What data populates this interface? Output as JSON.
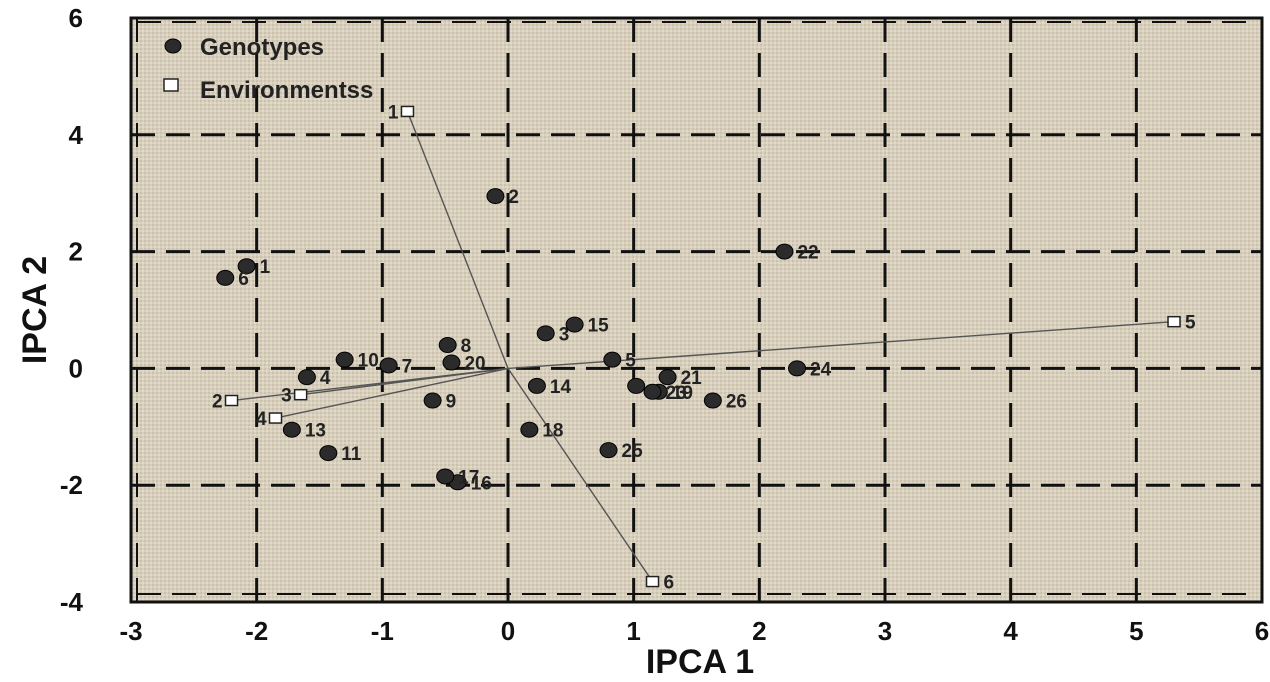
{
  "chart_data": {
    "type": "scatter",
    "title": "",
    "xlabel": "IPCA 1",
    "ylabel": "IPCA 2",
    "xlim": [
      -3,
      6
    ],
    "ylim": [
      -4,
      6
    ],
    "x_ticks": [
      -3,
      -2,
      -1,
      0,
      1,
      2,
      3,
      4,
      5,
      6
    ],
    "y_ticks": [
      -4,
      -2,
      0,
      2,
      4,
      6
    ],
    "x_tick_labels": [
      "-3",
      "-2",
      "-1",
      "0",
      "1",
      "2",
      "3",
      "4",
      "5",
      "6"
    ],
    "y_tick_labels": [
      "-4",
      "-2",
      "0",
      "2",
      "4",
      "6"
    ],
    "grid": true,
    "legend_position": "top-left",
    "colors": {
      "genotype": "#2b2b2b",
      "environment": "#ffffff",
      "background": "#d8cfbd",
      "grid": "#111111",
      "vector": "#555555"
    },
    "series": [
      {
        "name": "Genotypes",
        "marker": "filled-circle",
        "points": [
          {
            "label": "1",
            "x": -2.08,
            "y": 1.75
          },
          {
            "label": "2",
            "x": -0.1,
            "y": 2.95
          },
          {
            "label": "3",
            "x": 0.3,
            "y": 0.6
          },
          {
            "label": "4",
            "x": -1.6,
            "y": -0.15
          },
          {
            "label": "5",
            "x": 0.83,
            "y": 0.15
          },
          {
            "label": "6",
            "x": -2.25,
            "y": 1.55
          },
          {
            "label": "7",
            "x": -0.95,
            "y": 0.05
          },
          {
            "label": "8",
            "x": -0.48,
            "y": 0.4
          },
          {
            "label": "9",
            "x": -0.6,
            "y": -0.55
          },
          {
            "label": "10",
            "x": -1.3,
            "y": 0.15
          },
          {
            "label": "11",
            "x": -1.43,
            "y": -1.45
          },
          {
            "label": "13",
            "x": -1.72,
            "y": -1.05
          },
          {
            "label": "14",
            "x": 0.23,
            "y": -0.3
          },
          {
            "label": "15",
            "x": 0.53,
            "y": 0.75
          },
          {
            "label": "16",
            "x": -0.4,
            "y": -1.95
          },
          {
            "label": "17",
            "x": -0.5,
            "y": -1.85
          },
          {
            "label": "18",
            "x": 0.17,
            "y": -1.05
          },
          {
            "label": "19",
            "x": 1.2,
            "y": -0.4
          },
          {
            "label": "20",
            "x": -0.45,
            "y": 0.1
          },
          {
            "label": "21",
            "x": 1.27,
            "y": -0.15
          },
          {
            "label": "22",
            "x": 2.2,
            "y": 2.0
          },
          {
            "label": "23",
            "x": 1.15,
            "y": -0.4
          },
          {
            "label": "24",
            "x": 2.3,
            "y": 0.0
          },
          {
            "label": "25",
            "x": 0.8,
            "y": -1.4
          },
          {
            "label": "26",
            "x": 1.63,
            "y": -0.55
          },
          {
            "label": "",
            "x": 1.02,
            "y": -0.3
          }
        ]
      },
      {
        "name": "Environmentss",
        "marker": "open-square",
        "points": [
          {
            "label": "1",
            "x": -0.8,
            "y": 4.4
          },
          {
            "label": "2",
            "x": -2.2,
            "y": -0.55
          },
          {
            "label": "3",
            "x": -1.65,
            "y": -0.45
          },
          {
            "label": "4",
            "x": -1.85,
            "y": -0.85
          },
          {
            "label": "5",
            "x": 5.3,
            "y": 0.8
          },
          {
            "label": "6",
            "x": 1.15,
            "y": -3.65
          }
        ]
      }
    ]
  }
}
